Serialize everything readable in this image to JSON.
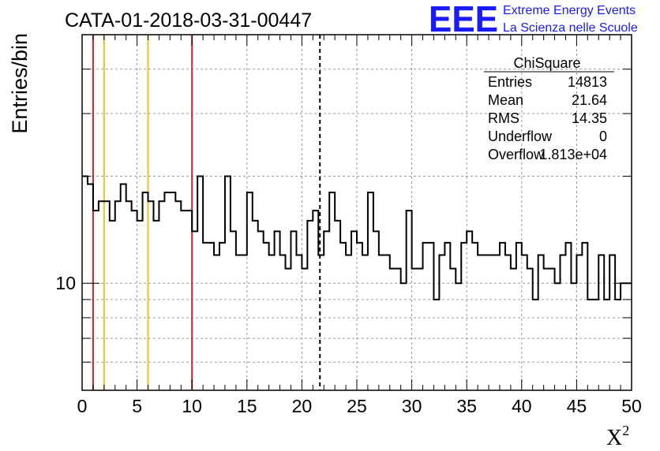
{
  "chart_data": {
    "type": "histogram",
    "title": "CATA-01-2018-03-31-00447",
    "xlabel": "X",
    "xlabel_superscript": "2",
    "ylabel": "Entries/bin",
    "xlim": [
      0,
      50
    ],
    "ylim": [
      5.0,
      50.0
    ],
    "yscale": "log",
    "grid": true,
    "x_ticks": [
      0,
      5,
      10,
      15,
      20,
      25,
      30,
      35,
      40,
      45,
      50
    ],
    "x_tick_labels": [
      "0",
      "5",
      "10",
      "15",
      "20",
      "25",
      "30",
      "35",
      "40",
      "45",
      "50"
    ],
    "y_tick_labels": [
      {
        "value": 10,
        "label": "10"
      }
    ],
    "bin_width": 0.5,
    "bin_start": 0,
    "values": [
      20,
      19,
      16,
      17,
      17,
      15,
      17,
      19,
      17,
      16,
      15,
      18,
      17,
      15,
      17,
      18,
      18,
      17,
      16,
      16,
      14,
      20,
      13,
      13,
      12,
      13,
      20,
      14,
      12,
      12,
      18,
      15,
      14,
      13,
      12,
      14,
      12,
      11,
      14,
      12,
      11,
      15,
      16,
      12,
      14,
      18,
      15,
      13,
      12,
      14,
      13,
      12,
      18,
      14,
      12,
      12,
      11,
      11,
      10,
      16,
      11,
      11,
      13,
      13,
      9,
      12,
      13,
      11,
      10,
      13,
      14,
      13,
      12,
      12,
      12,
      12,
      13,
      12,
      11,
      13,
      12,
      11,
      9,
      12,
      11,
      11,
      10,
      12,
      13,
      10,
      12,
      13,
      9,
      9,
      12,
      9,
      12,
      9,
      10,
      10
    ],
    "vertical_lines": [
      {
        "x": 1,
        "color": "#e02020",
        "style": "solid"
      },
      {
        "x": 2,
        "color": "#f0c020",
        "style": "solid"
      },
      {
        "x": 6,
        "color": "#f0c020",
        "style": "solid"
      },
      {
        "x": 10,
        "color": "#e02020",
        "style": "solid"
      },
      {
        "x": 21.64,
        "color": "#000000",
        "style": "dashed"
      }
    ],
    "stats_box": {
      "title": "ChiSquare",
      "rows": [
        {
          "label": "Entries",
          "value": "14813"
        },
        {
          "label": "Mean",
          "value": "21.64"
        },
        {
          "label": "RMS",
          "value": "14.35"
        },
        {
          "label": "Underflow",
          "value": "0"
        },
        {
          "label": "Overflow",
          "value": "1.813e+04"
        }
      ]
    },
    "logo": {
      "mark": "EEE",
      "line1": "Extreme Energy Events",
      "line2": "La Scienza nelle Scuole",
      "color": "#1a1aff"
    }
  }
}
